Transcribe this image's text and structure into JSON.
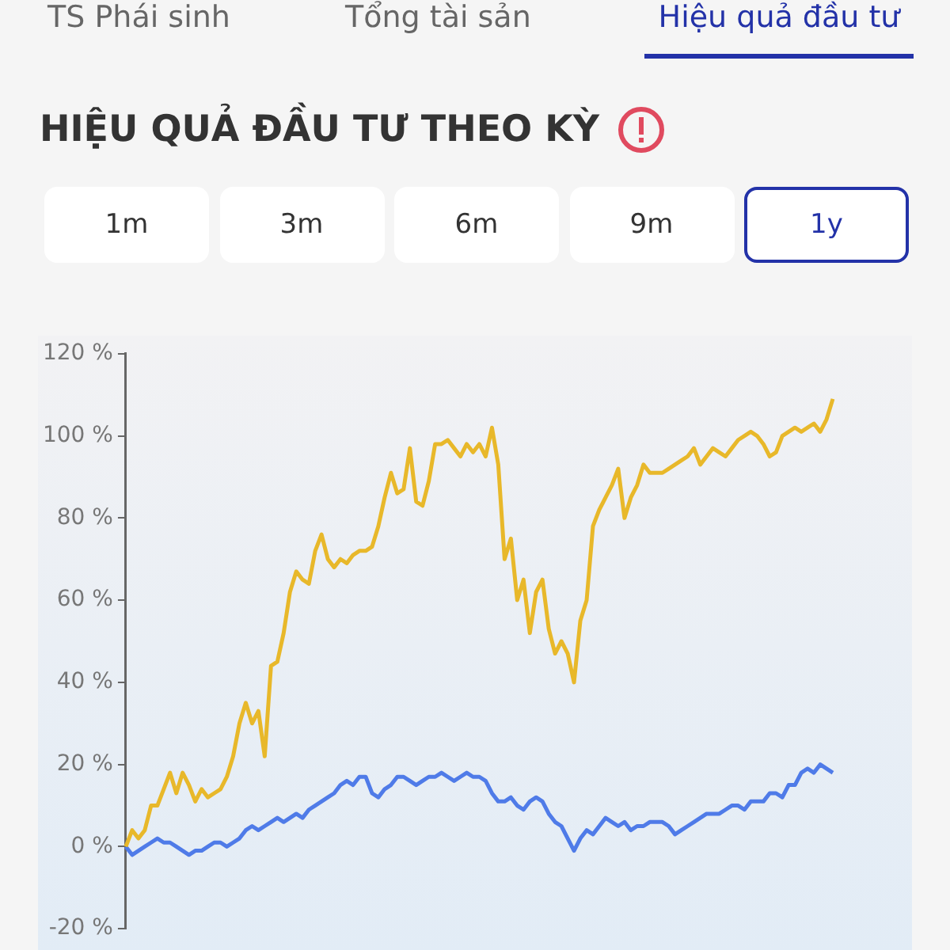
{
  "chart_data": {
    "type": "line",
    "title": "HIỆU QUẢ ĐẦU TƯ THEO KỲ",
    "annotations": [
      "TS Phái sinh",
      "Tổng tài sản",
      "Hiệu quả đầu tư",
      "1m",
      "3m",
      "6m",
      "9m",
      "1y"
    ],
    "categories": [
      null,
      null,
      null,
      null,
      null,
      null,
      null,
      null,
      null,
      null,
      null,
      null,
      null,
      null,
      null,
      null,
      null,
      null,
      null,
      null,
      null,
      null,
      null,
      null,
      null,
      null,
      null,
      null,
      null,
      null,
      null,
      null,
      null,
      null,
      null,
      null,
      null,
      null,
      null,
      null,
      null,
      null,
      null,
      null,
      null,
      null,
      null,
      null,
      null,
      null,
      null,
      null,
      null,
      null,
      null,
      null,
      null,
      null,
      null,
      null,
      null,
      null,
      null,
      null,
      null,
      null,
      null,
      null,
      null,
      null,
      null,
      null,
      null,
      null,
      null,
      null,
      null,
      null,
      null,
      null,
      null,
      null,
      null,
      null,
      null,
      null,
      null,
      null,
      null,
      null,
      null,
      null,
      null,
      null,
      null,
      null,
      null,
      null,
      null,
      null,
      null,
      null,
      null,
      null,
      null,
      null,
      null,
      null,
      null,
      null,
      null,
      null,
      null
    ],
    "series": [
      {
        "color": "#e8b82a",
        "values": [
          0,
          4,
          2,
          4,
          10,
          10,
          14,
          18,
          13,
          18,
          15,
          11,
          14,
          12,
          13,
          14,
          17,
          22,
          30,
          35,
          30,
          33,
          22,
          44,
          45,
          52,
          62,
          67,
          65,
          64,
          72,
          76,
          70,
          68,
          70,
          69,
          71,
          72,
          72,
          73,
          78,
          85,
          91,
          86,
          87,
          97,
          84,
          83,
          89,
          98,
          98,
          99,
          97,
          95,
          98,
          96,
          98,
          95,
          102,
          93,
          70,
          75,
          60,
          65,
          52,
          62,
          65,
          53,
          47,
          50,
          47,
          40,
          55,
          60,
          78,
          82,
          85,
          88,
          92,
          80,
          85,
          88,
          93,
          91,
          91,
          91,
          92,
          93,
          94,
          95,
          97,
          93,
          95,
          97,
          96,
          95,
          97,
          99,
          100,
          101,
          100,
          98,
          95,
          96,
          100,
          101,
          102,
          101,
          102,
          103,
          101,
          104,
          109
        ]
      },
      {
        "color": "#4f7be8",
        "values": [
          0,
          -2,
          -1,
          0,
          1,
          2,
          1,
          1,
          0,
          -1,
          -2,
          -1,
          -1,
          0,
          1,
          1,
          0,
          1,
          2,
          4,
          5,
          4,
          5,
          6,
          7,
          6,
          7,
          8,
          7,
          9,
          10,
          11,
          12,
          13,
          15,
          16,
          15,
          17,
          17,
          13,
          12,
          14,
          15,
          17,
          17,
          16,
          15,
          16,
          17,
          17,
          18,
          17,
          16,
          17,
          18,
          17,
          17,
          16,
          13,
          11,
          11,
          12,
          10,
          9,
          11,
          12,
          11,
          8,
          6,
          5,
          2,
          -1,
          2,
          4,
          3,
          5,
          7,
          6,
          5,
          6,
          4,
          5,
          5,
          6,
          6,
          6,
          5,
          3,
          4,
          5,
          6,
          7,
          8,
          8,
          8,
          9,
          10,
          10,
          9,
          11,
          11,
          11,
          13,
          13,
          12,
          15,
          15,
          18,
          19,
          18,
          20,
          19,
          18
        ]
      }
    ],
    "ylim": [
      -20,
      120
    ],
    "yticks": [
      {
        "value": -20,
        "label": "-20 %"
      },
      {
        "value": 0,
        "label": "0 %"
      },
      {
        "value": 20,
        "label": "20 %"
      },
      {
        "value": 40,
        "label": "40 %"
      },
      {
        "value": 60,
        "label": "60 %"
      },
      {
        "value": 80,
        "label": "80 %"
      },
      {
        "value": 100,
        "label": "100 %"
      },
      {
        "value": 120,
        "label": "120 %"
      }
    ],
    "grid": false,
    "legend": false,
    "marker": "none",
    "line_style": "solid"
  }
}
